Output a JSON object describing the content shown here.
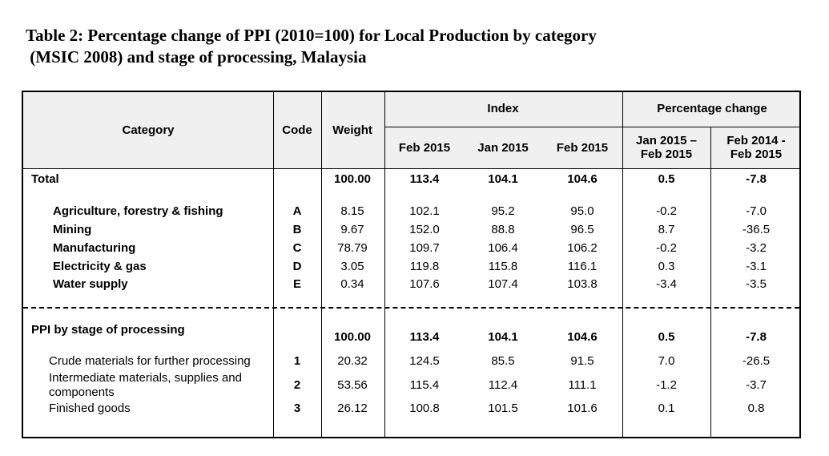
{
  "title": {
    "line1": "Table 2: Percentage change of PPI (2010=100) for Local Production by category",
    "line2": " (MSIC 2008) and stage of processing, Malaysia"
  },
  "header": {
    "category": "Category",
    "code": "Code",
    "weight": "Weight",
    "index": "Index",
    "pct_change": "Percentage change",
    "feb2015_a": "Feb 2015",
    "jan2015": "Jan 2015",
    "feb2015_b": "Feb 2015",
    "mom_l1": "Jan 2015 –",
    "mom_l2": "Feb 2015",
    "yoy_l1": "Feb 2014 -",
    "yoy_l2": "Feb 2015"
  },
  "total": {
    "label": "Total",
    "weight": "100.00",
    "v1": "113.4",
    "v2": "104.1",
    "v3": "104.6",
    "p1": "0.5",
    "p2": "-7.8"
  },
  "categories": [
    {
      "label": "Agriculture, forestry & fishing",
      "code": "A",
      "weight": "8.15",
      "v1": "102.1",
      "v2": "95.2",
      "v3": "95.0",
      "p1": "-0.2",
      "p2": "-7.0"
    },
    {
      "label": "Mining",
      "code": "B",
      "weight": "9.67",
      "v1": "152.0",
      "v2": "88.8",
      "v3": "96.5",
      "p1": "8.7",
      "p2": "-36.5"
    },
    {
      "label": "Manufacturing",
      "code": "C",
      "weight": "78.79",
      "v1": "109.7",
      "v2": "106.4",
      "v3": "106.2",
      "p1": "-0.2",
      "p2": "-3.2"
    },
    {
      "label": "Electricity & gas",
      "code": "D",
      "weight": "3.05",
      "v1": "119.8",
      "v2": "115.8",
      "v3": "116.1",
      "p1": "0.3",
      "p2": "-3.1"
    },
    {
      "label": "Water supply",
      "code": "E",
      "weight": "0.34",
      "v1": "107.6",
      "v2": "107.4",
      "v3": "103.8",
      "p1": "-3.4",
      "p2": "-3.5"
    }
  ],
  "stage": {
    "label": "PPI by stage of processing",
    "weight": "100.00",
    "v1": "113.4",
    "v2": "104.1",
    "v3": "104.6",
    "p1": "0.5",
    "p2": "-7.8"
  },
  "stages": [
    {
      "label": "Crude materials for further processing",
      "code": "1",
      "weight": "20.32",
      "v1": "124.5",
      "v2": "85.5",
      "v3": "91.5",
      "p1": "7.0",
      "p2": "-26.5"
    },
    {
      "label_l1": "Intermediate materials, supplies and",
      "label_l2": "components",
      "code": "2",
      "weight": "53.56",
      "v1": "115.4",
      "v2": "112.4",
      "v3": "111.1",
      "p1": "-1.2",
      "p2": "-3.7"
    },
    {
      "label": "Finished goods",
      "code": "3",
      "weight": "26.12",
      "v1": "100.8",
      "v2": "101.5",
      "v3": "101.6",
      "p1": "0.1",
      "p2": "0.8"
    }
  ]
}
